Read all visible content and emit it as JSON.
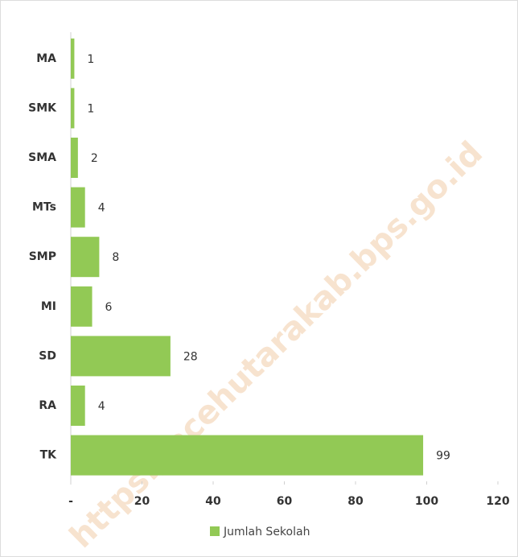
{
  "chart_data": {
    "type": "bar",
    "orientation": "horizontal",
    "categories": [
      "MA",
      "SMK",
      "SMA",
      "MTs",
      "SMP",
      "MI",
      "SD",
      "RA",
      "TK"
    ],
    "series": [
      {
        "name": "Jumlah Sekolah",
        "color": "#92c955",
        "values": [
          1,
          1,
          2,
          4,
          8,
          6,
          28,
          4,
          99
        ]
      }
    ],
    "xlim": [
      0,
      120
    ],
    "xticks": [
      {
        "value": 0,
        "label": "-"
      },
      20,
      40,
      60,
      80,
      100,
      120
    ],
    "legend": "bottom",
    "watermark": "https://acehutarakab.bps.go.id"
  }
}
